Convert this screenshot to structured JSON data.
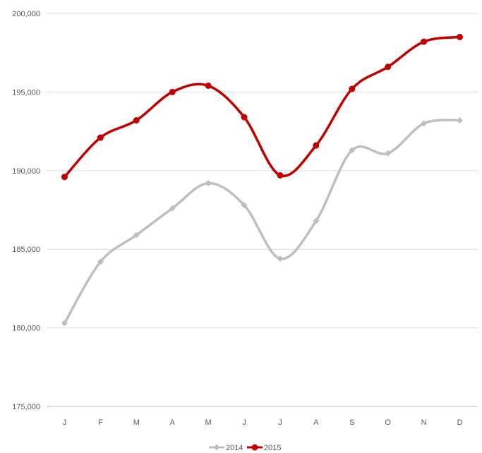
{
  "chart_data": {
    "type": "line",
    "title": "",
    "xlabel": "",
    "ylabel": "",
    "categories": [
      "J",
      "F",
      "M",
      "A",
      "M",
      "J",
      "J",
      "A",
      "S",
      "O",
      "N",
      "D"
    ],
    "ylim": [
      175000,
      200000
    ],
    "yticks": [
      175000,
      180000,
      185000,
      190000,
      195000,
      200000
    ],
    "ytick_labels": [
      "175,000",
      "180,000",
      "185,000",
      "190,000",
      "195,000",
      "200,000"
    ],
    "grid": true,
    "legend": "bottom",
    "smooth": true,
    "series": [
      {
        "name": "2014",
        "color": "#bfbfbf",
        "marker": "diamond",
        "values": [
          180300,
          184200,
          185900,
          187600,
          189200,
          187800,
          184400,
          186800,
          191300,
          191100,
          193000,
          193200
        ]
      },
      {
        "name": "2015",
        "color": "#c00000",
        "marker": "circle",
        "values": [
          189600,
          192100,
          193200,
          195000,
          195400,
          193400,
          189700,
          191600,
          195200,
          196600,
          198200,
          198500
        ]
      }
    ]
  }
}
